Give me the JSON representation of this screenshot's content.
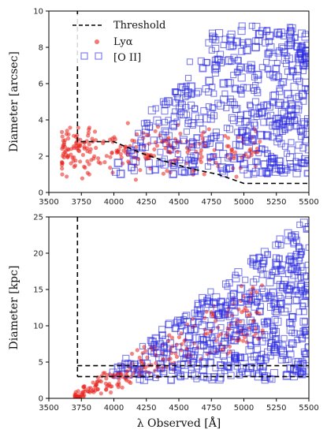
{
  "chart_data": [
    {
      "type": "scatter",
      "xlabel": "",
      "ylabel": "Diameter [arcsec]",
      "xlim": [
        3500,
        5500
      ],
      "ylim": [
        0,
        10
      ],
      "x_ticks": [
        "3500",
        "3750",
        "4000",
        "4250",
        "4500",
        "4750",
        "5000",
        "5250",
        "5500"
      ],
      "y_ticks": [
        "0",
        "2",
        "4",
        "6",
        "8",
        "10"
      ],
      "legend": {
        "placement": "top-left",
        "entries": [
          "Threshold",
          "Lyα",
          "[O II]"
        ]
      },
      "threshold": {
        "name": "Threshold",
        "x": [
          3720,
          3720,
          3720,
          3780,
          4000,
          4200,
          4400,
          4600,
          4800,
          5000,
          5500
        ],
        "y": [
          10,
          10,
          2.8,
          2.8,
          2.8,
          2.2,
          1.7,
          1.3,
          1.0,
          0.5,
          0.5
        ],
        "style": "dashed",
        "color": "#000000"
      },
      "series": [
        {
          "name": "Lyα",
          "marker": "circle",
          "color": "#e8201c",
          "n": 260,
          "x_range": [
            3600,
            5150
          ],
          "y_range": [
            0.5,
            5.5
          ]
        },
        {
          "name": "[O II]",
          "marker": "square-open",
          "color": "#2a2adf",
          "n": 520,
          "x_range": [
            3950,
            5500
          ],
          "y_range": [
            0.6,
            9.2
          ]
        }
      ]
    },
    {
      "type": "scatter",
      "xlabel": "λ Observed [Å]",
      "ylabel": "Diameter [kpc]",
      "xlim": [
        3500,
        5500
      ],
      "ylim": [
        0,
        25
      ],
      "x_ticks": [
        "3500",
        "3750",
        "4000",
        "4250",
        "4500",
        "4750",
        "5000",
        "5250",
        "5500"
      ],
      "y_ticks": [
        "0",
        "5",
        "10",
        "15",
        "20",
        "25"
      ],
      "threshold_lines": [
        {
          "x": [
            3720,
            3720
          ],
          "y": [
            25,
            3
          ],
          "style": "dashed"
        },
        {
          "x": [
            3720,
            5500
          ],
          "y": [
            4.5,
            4.5
          ],
          "style": "dashed"
        },
        {
          "x": [
            3720,
            5500
          ],
          "y": [
            3.0,
            3.0
          ],
          "style": "dashed"
        }
      ],
      "series": [
        {
          "name": "Lyα",
          "marker": "circle",
          "color": "#e8201c",
          "n": 260,
          "x_range": [
            3700,
            5150
          ],
          "y_range": [
            0.2,
            16
          ]
        },
        {
          "name": "[O II]",
          "marker": "square-open",
          "color": "#2a2adf",
          "n": 520,
          "x_range": [
            3950,
            5500
          ],
          "y_range": [
            2,
            24.5
          ]
        }
      ]
    }
  ]
}
